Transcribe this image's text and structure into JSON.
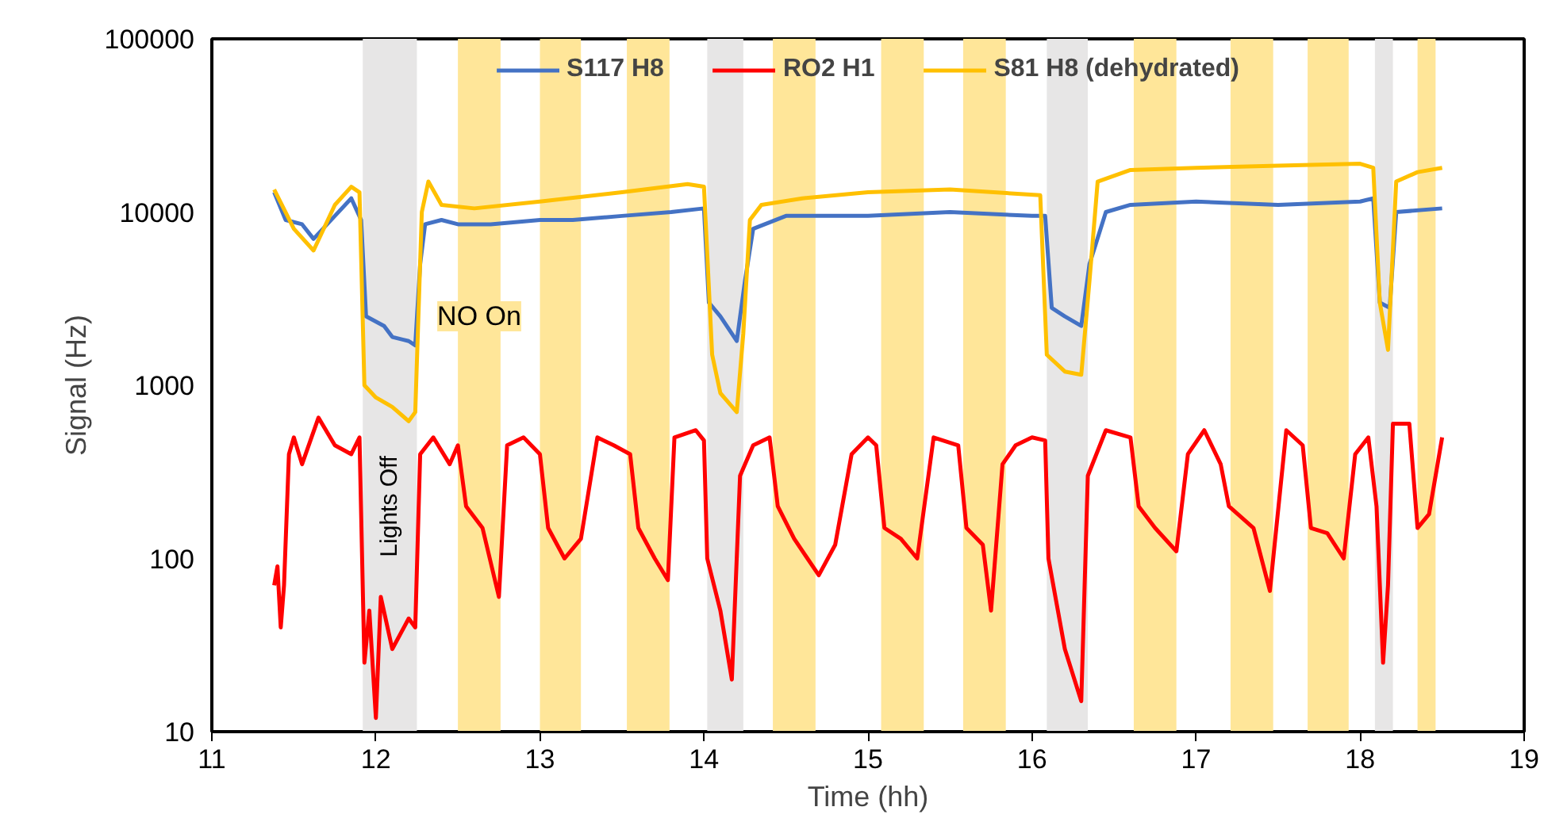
{
  "chart_data": {
    "type": "line",
    "xlabel": "Time (hh)",
    "ylabel": "Signal (Hz)",
    "log": "y",
    "xlim": [
      11,
      19
    ],
    "xticks": [
      11,
      12,
      13,
      14,
      15,
      16,
      17,
      18,
      19
    ],
    "ylim": [
      10,
      100000
    ],
    "yticks": [
      10,
      100,
      1000,
      10000,
      100000
    ],
    "grid": false,
    "legend": "top",
    "marker": "none",
    "line_style": "solid",
    "series": [
      {
        "name": "S117 H8",
        "color": "#4472c4",
        "x": [
          11.38,
          11.45,
          11.55,
          11.62,
          11.75,
          11.85,
          11.91,
          11.94,
          12.05,
          12.1,
          12.2,
          12.24,
          12.27,
          12.3,
          12.4,
          12.5,
          12.7,
          13.0,
          13.2,
          13.5,
          13.8,
          14.0,
          14.03,
          14.1,
          14.2,
          14.25,
          14.3,
          14.5,
          15.0,
          15.5,
          16.0,
          16.08,
          16.12,
          16.2,
          16.3,
          16.35,
          16.45,
          16.6,
          17.0,
          17.5,
          18.0,
          18.08,
          18.12,
          18.18,
          18.22,
          18.5
        ],
        "values": [
          13000,
          9000,
          8500,
          7000,
          9500,
          12000,
          9000,
          2500,
          2200,
          1900,
          1800,
          1700,
          5000,
          8500,
          9000,
          8500,
          8500,
          9000,
          9000,
          9500,
          10000,
          10500,
          3000,
          2500,
          1800,
          4000,
          8000,
          9500,
          9500,
          10000,
          9500,
          9500,
          2800,
          2500,
          2200,
          5000,
          10000,
          11000,
          11500,
          11000,
          11500,
          12000,
          3000,
          2800,
          10000,
          10500
        ]
      },
      {
        "name": "RO2 H1",
        "color": "#ff0000",
        "x": [
          11.38,
          11.4,
          11.42,
          11.44,
          11.47,
          11.5,
          11.55,
          11.65,
          11.75,
          11.85,
          11.9,
          11.93,
          11.96,
          12.0,
          12.03,
          12.1,
          12.2,
          12.24,
          12.27,
          12.35,
          12.45,
          12.5,
          12.55,
          12.65,
          12.75,
          12.8,
          12.9,
          13.0,
          13.05,
          13.15,
          13.25,
          13.35,
          13.45,
          13.55,
          13.6,
          13.7,
          13.78,
          13.82,
          13.95,
          14.0,
          14.02,
          14.1,
          14.17,
          14.22,
          14.3,
          14.4,
          14.45,
          14.55,
          14.7,
          14.8,
          14.9,
          15.0,
          15.05,
          15.1,
          15.2,
          15.3,
          15.4,
          15.55,
          15.6,
          15.7,
          15.75,
          15.82,
          15.9,
          16.0,
          16.08,
          16.1,
          16.2,
          16.3,
          16.34,
          16.45,
          16.6,
          16.65,
          16.75,
          16.88,
          16.95,
          17.05,
          17.15,
          17.2,
          17.35,
          17.45,
          17.55,
          17.65,
          17.7,
          17.8,
          17.9,
          17.97,
          18.05,
          18.1,
          18.14,
          18.17,
          18.2,
          18.3,
          18.35,
          18.42,
          18.5
        ],
        "values": [
          70,
          90,
          40,
          70,
          400,
          500,
          350,
          650,
          450,
          400,
          500,
          25,
          50,
          12,
          60,
          30,
          45,
          40,
          400,
          500,
          350,
          450,
          200,
          150,
          60,
          450,
          500,
          400,
          150,
          100,
          130,
          500,
          450,
          400,
          150,
          100,
          75,
          500,
          550,
          480,
          100,
          50,
          20,
          300,
          450,
          500,
          200,
          130,
          80,
          120,
          400,
          500,
          450,
          150,
          130,
          100,
          500,
          450,
          150,
          120,
          50,
          350,
          450,
          500,
          480,
          100,
          30,
          15,
          300,
          550,
          500,
          200,
          150,
          110,
          400,
          550,
          350,
          200,
          150,
          65,
          550,
          450,
          150,
          140,
          100,
          400,
          500,
          200,
          25,
          70,
          600,
          600,
          150,
          180,
          500
        ]
      },
      {
        "name": "S81 H8 (dehydrated)",
        "color": "#ffc000",
        "x": [
          11.38,
          11.5,
          11.62,
          11.75,
          11.85,
          11.9,
          11.93,
          12.0,
          12.1,
          12.2,
          12.24,
          12.28,
          12.32,
          12.4,
          12.6,
          13.0,
          13.5,
          13.9,
          14.0,
          14.05,
          14.1,
          14.2,
          14.24,
          14.28,
          14.35,
          14.6,
          15.0,
          15.5,
          16.05,
          16.09,
          16.2,
          16.3,
          16.35,
          16.4,
          16.6,
          17.0,
          17.5,
          18.0,
          18.08,
          18.12,
          18.17,
          18.22,
          18.35,
          18.5
        ],
        "values": [
          13500,
          8000,
          6000,
          11000,
          14000,
          13000,
          1000,
          850,
          750,
          620,
          700,
          10000,
          15000,
          11000,
          10500,
          11500,
          13000,
          14500,
          14000,
          1500,
          900,
          700,
          2000,
          9000,
          11000,
          12000,
          13000,
          13500,
          12500,
          1500,
          1200,
          1150,
          4000,
          15000,
          17500,
          18000,
          18500,
          19000,
          18000,
          3000,
          1600,
          15000,
          17000,
          18000
        ]
      }
    ],
    "bands": [
      {
        "axis": "x",
        "from": 11.92,
        "to": 12.25,
        "color": "#e7e6e6",
        "label": "Lights Off"
      },
      {
        "axis": "x",
        "from": 14.02,
        "to": 14.24,
        "color": "#e7e6e6"
      },
      {
        "axis": "x",
        "from": 16.09,
        "to": 16.34,
        "color": "#e7e6e6"
      },
      {
        "axis": "x",
        "from": 18.09,
        "to": 18.2,
        "color": "#e7e6e6"
      },
      {
        "axis": "x",
        "from": 12.5,
        "to": 12.76,
        "color": "#ffe699",
        "label": "NO On"
      },
      {
        "axis": "x",
        "from": 13.0,
        "to": 13.25,
        "color": "#ffe699"
      },
      {
        "axis": "x",
        "from": 13.53,
        "to": 13.79,
        "color": "#ffe699"
      },
      {
        "axis": "x",
        "from": 14.42,
        "to": 14.68,
        "color": "#ffe699"
      },
      {
        "axis": "x",
        "from": 15.08,
        "to": 15.34,
        "color": "#ffe699"
      },
      {
        "axis": "x",
        "from": 15.58,
        "to": 15.84,
        "color": "#ffe699"
      },
      {
        "axis": "x",
        "from": 16.62,
        "to": 16.88,
        "color": "#ffe699"
      },
      {
        "axis": "x",
        "from": 17.21,
        "to": 17.47,
        "color": "#ffe699"
      },
      {
        "axis": "x",
        "from": 17.68,
        "to": 17.93,
        "color": "#ffe699"
      },
      {
        "axis": "x",
        "from": 18.35,
        "to": 18.46,
        "color": "#ffe699"
      }
    ]
  }
}
